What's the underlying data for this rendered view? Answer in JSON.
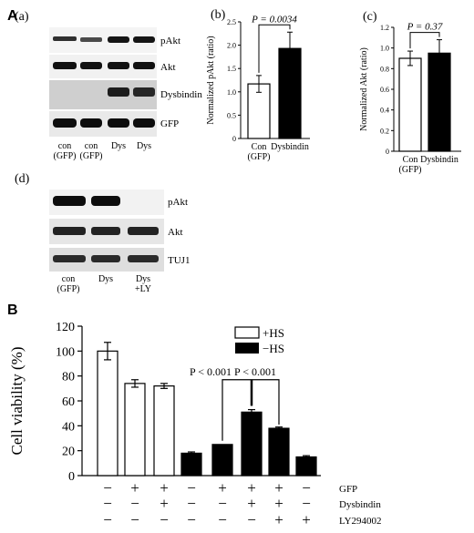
{
  "panel_A": {
    "label": "A",
    "a": {
      "label": "(a)",
      "rows": [
        "pAkt",
        "Akt",
        "Dysbindin",
        "GFP"
      ],
      "lanes": [
        "con (GFP)",
        "con (GFP)",
        "Dys",
        "Dys"
      ],
      "lane_lines": [
        [
          "con",
          "(GFP)"
        ],
        [
          "con",
          "(GFP)"
        ],
        [
          "Dys"
        ],
        [
          "Dys"
        ]
      ]
    },
    "d": {
      "label": "(d)",
      "rows": [
        "pAkt",
        "Akt",
        "TUJ1"
      ],
      "lane_lines": [
        [
          "con",
          "(GFP)"
        ],
        [
          "Dys"
        ],
        [
          "Dys",
          "+LY"
        ]
      ]
    }
  },
  "panel_B": {
    "label": "B",
    "legend": [
      "+HS",
      "−HS"
    ],
    "annotations": [
      "P < 0.001",
      "P < 0.001"
    ],
    "row_labels": [
      "GFP",
      "Dysbindin",
      "LY294002"
    ],
    "signs": [
      [
        "−",
        "+",
        "+",
        "−",
        "+",
        "+",
        "+",
        "−"
      ],
      [
        "−",
        "−",
        "+",
        "−",
        "−",
        "+",
        "+",
        "−"
      ],
      [
        "−",
        "−",
        "−",
        "−",
        "−",
        "−",
        "+",
        "+"
      ]
    ]
  },
  "chart_data": [
    {
      "id": "b",
      "panel_label": "(b)",
      "type": "bar",
      "categories": [
        "Con (GFP)",
        "Dysbindin"
      ],
      "category_lines": [
        [
          "Con",
          "(GFP)"
        ],
        [
          "Dysbindin"
        ]
      ],
      "values": [
        1.17,
        1.93
      ],
      "errors": [
        0.18,
        0.35
      ],
      "colors": [
        "#ffffff",
        "#000000"
      ],
      "ylabel": "Normalized pAkt (ratio)",
      "ylim": [
        0,
        2.5
      ],
      "yticks": [
        "0",
        "0.5",
        "1.0",
        "1.5",
        "2.0",
        "2.5"
      ],
      "annotation": "P = 0.0034"
    },
    {
      "id": "c",
      "panel_label": "(c)",
      "type": "bar",
      "categories": [
        "Con (GFP)",
        "Dysbindin"
      ],
      "category_lines": [
        [
          "Con",
          "(GFP)"
        ],
        [
          "Dysbindin"
        ]
      ],
      "values": [
        0.9,
        0.95
      ],
      "errors": [
        0.07,
        0.13
      ],
      "colors": [
        "#ffffff",
        "#000000"
      ],
      "ylabel": "Normalized Akt (ratio)",
      "ylim": [
        0,
        1.2
      ],
      "yticks": [
        "0",
        "0.2",
        "0.4",
        "0.6",
        "0.8",
        "1.0",
        "1.2"
      ],
      "annotation": "P = 0.37"
    },
    {
      "id": "B",
      "type": "bar",
      "values": [
        100,
        74,
        72,
        18,
        25,
        51,
        38,
        15
      ],
      "errors": [
        7,
        3,
        2,
        1,
        0,
        2,
        1,
        1
      ],
      "fills": [
        "white",
        "white",
        "white",
        "black",
        "black",
        "black",
        "black",
        "black"
      ],
      "ylabel": "Cell viability (%)",
      "ylim": [
        0,
        120
      ],
      "yticks": [
        "0",
        "20",
        "40",
        "60",
        "80",
        "100",
        "120"
      ]
    }
  ]
}
